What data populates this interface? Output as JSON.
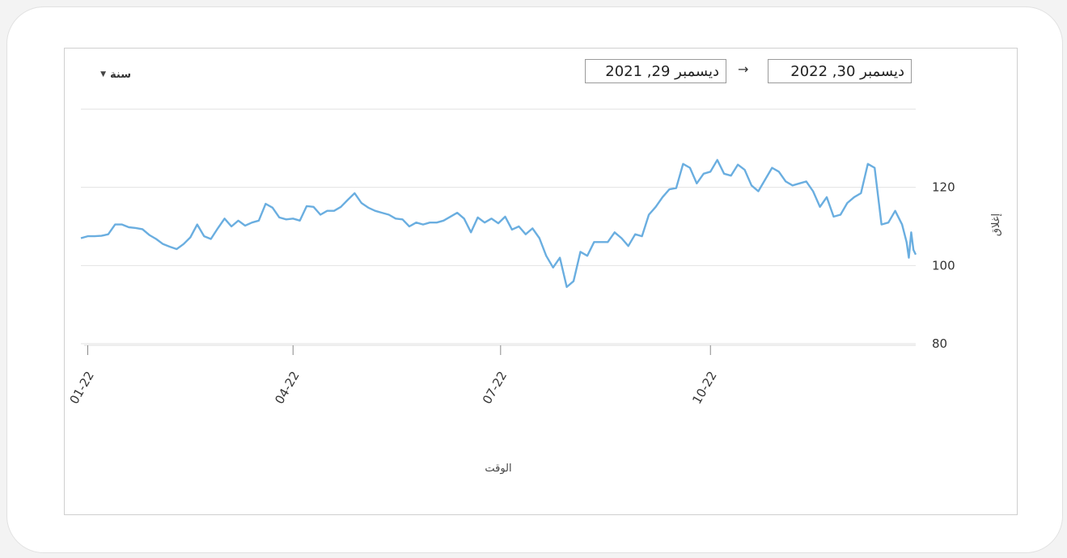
{
  "controls": {
    "range_label": "سنة",
    "date_from": "ديسمبر 29, 2021",
    "date_to": "ديسمبر 30, 2022",
    "arrow": "→"
  },
  "colors": {
    "line": "#6aaee0",
    "grid": "#e2e2e2",
    "panel_border": "#cfcfcf"
  },
  "chart_data": {
    "type": "line",
    "title": "",
    "xlabel": "الوقت",
    "ylabel": "إغلاق",
    "ylim": [
      80,
      140
    ],
    "yticks": [
      80,
      100,
      120
    ],
    "xlim": [
      "2021-12-29",
      "2022-12-30"
    ],
    "xticks": [
      {
        "date": "2022-01-01",
        "label": "01-22"
      },
      {
        "date": "2022-04-01",
        "label": "04-22"
      },
      {
        "date": "2022-07-01",
        "label": "07-22"
      },
      {
        "date": "2022-10-01",
        "label": "10-22"
      }
    ],
    "series": [
      {
        "name": "",
        "points": [
          [
            "2021-12-29",
            107.0
          ],
          [
            "2022-01-01",
            107.5
          ],
          [
            "2022-01-04",
            107.5
          ],
          [
            "2022-01-07",
            107.6
          ],
          [
            "2022-01-10",
            108.0
          ],
          [
            "2022-01-13",
            110.5
          ],
          [
            "2022-01-16",
            110.5
          ],
          [
            "2022-01-19",
            109.8
          ],
          [
            "2022-01-22",
            109.6
          ],
          [
            "2022-01-25",
            109.3
          ],
          [
            "2022-01-28",
            107.8
          ],
          [
            "2022-01-31",
            106.8
          ],
          [
            "2022-02-03",
            105.5
          ],
          [
            "2022-02-06",
            104.8
          ],
          [
            "2022-02-09",
            104.2
          ],
          [
            "2022-02-12",
            105.5
          ],
          [
            "2022-02-15",
            107.2
          ],
          [
            "2022-02-18",
            110.5
          ],
          [
            "2022-02-21",
            107.5
          ],
          [
            "2022-02-24",
            106.8
          ],
          [
            "2022-02-27",
            109.5
          ],
          [
            "2022-03-02",
            112.0
          ],
          [
            "2022-03-05",
            110.0
          ],
          [
            "2022-03-08",
            111.5
          ],
          [
            "2022-03-11",
            110.2
          ],
          [
            "2022-03-14",
            111.0
          ],
          [
            "2022-03-17",
            111.5
          ],
          [
            "2022-03-20",
            115.8
          ],
          [
            "2022-03-23",
            114.8
          ],
          [
            "2022-03-26",
            112.3
          ],
          [
            "2022-03-29",
            111.8
          ],
          [
            "2022-04-01",
            112.0
          ],
          [
            "2022-04-04",
            111.5
          ],
          [
            "2022-04-07",
            115.2
          ],
          [
            "2022-04-10",
            115.0
          ],
          [
            "2022-04-13",
            113.0
          ],
          [
            "2022-04-16",
            114.0
          ],
          [
            "2022-04-19",
            114.0
          ],
          [
            "2022-04-22",
            115.0
          ],
          [
            "2022-04-25",
            116.8
          ],
          [
            "2022-04-28",
            118.5
          ],
          [
            "2022-05-01",
            116.0
          ],
          [
            "2022-05-04",
            114.8
          ],
          [
            "2022-05-07",
            114.0
          ],
          [
            "2022-05-10",
            113.5
          ],
          [
            "2022-05-13",
            113.0
          ],
          [
            "2022-05-16",
            112.0
          ],
          [
            "2022-05-19",
            111.8
          ],
          [
            "2022-05-22",
            110.0
          ],
          [
            "2022-05-25",
            111.0
          ],
          [
            "2022-05-28",
            110.5
          ],
          [
            "2022-05-31",
            111.0
          ],
          [
            "2022-06-03",
            111.0
          ],
          [
            "2022-06-06",
            111.5
          ],
          [
            "2022-06-09",
            112.5
          ],
          [
            "2022-06-12",
            113.5
          ],
          [
            "2022-06-15",
            112.0
          ],
          [
            "2022-06-18",
            108.5
          ],
          [
            "2022-06-21",
            112.3
          ],
          [
            "2022-06-24",
            111.0
          ],
          [
            "2022-06-27",
            112.0
          ],
          [
            "2022-06-30",
            110.8
          ],
          [
            "2022-07-03",
            112.5
          ],
          [
            "2022-07-06",
            109.2
          ],
          [
            "2022-07-09",
            110.0
          ],
          [
            "2022-07-12",
            108.0
          ],
          [
            "2022-07-15",
            109.5
          ],
          [
            "2022-07-18",
            107.0
          ],
          [
            "2022-07-21",
            102.5
          ],
          [
            "2022-07-24",
            99.5
          ],
          [
            "2022-07-27",
            102.0
          ],
          [
            "2022-07-30",
            94.5
          ],
          [
            "2022-08-02",
            96.0
          ],
          [
            "2022-08-05",
            103.5
          ],
          [
            "2022-08-08",
            102.5
          ],
          [
            "2022-08-11",
            106.0
          ],
          [
            "2022-08-14",
            106.0
          ],
          [
            "2022-08-17",
            106.0
          ],
          [
            "2022-08-20",
            108.5
          ],
          [
            "2022-08-23",
            107.0
          ],
          [
            "2022-08-26",
            105.0
          ],
          [
            "2022-08-29",
            108.0
          ],
          [
            "2022-09-01",
            107.5
          ],
          [
            "2022-09-04",
            113.0
          ],
          [
            "2022-09-07",
            115.0
          ],
          [
            "2022-09-10",
            117.5
          ],
          [
            "2022-09-13",
            119.5
          ],
          [
            "2022-09-16",
            119.8
          ],
          [
            "2022-09-19",
            126.0
          ],
          [
            "2022-09-22",
            125.0
          ],
          [
            "2022-09-25",
            121.0
          ],
          [
            "2022-09-28",
            123.5
          ],
          [
            "2022-10-01",
            124.0
          ],
          [
            "2022-10-04",
            127.0
          ],
          [
            "2022-10-07",
            123.5
          ],
          [
            "2022-10-10",
            123.0
          ],
          [
            "2022-10-13",
            125.8
          ],
          [
            "2022-10-16",
            124.5
          ],
          [
            "2022-10-19",
            120.5
          ],
          [
            "2022-10-22",
            119.0
          ],
          [
            "2022-10-25",
            122.0
          ],
          [
            "2022-10-28",
            125.0
          ],
          [
            "2022-10-31",
            124.0
          ],
          [
            "2022-11-03",
            121.5
          ],
          [
            "2022-11-06",
            120.5
          ],
          [
            "2022-11-09",
            121.0
          ],
          [
            "2022-11-12",
            121.5
          ],
          [
            "2022-11-15",
            119.0
          ],
          [
            "2022-11-18",
            115.0
          ],
          [
            "2022-11-21",
            117.5
          ],
          [
            "2022-11-24",
            112.5
          ],
          [
            "2022-11-27",
            113.0
          ],
          [
            "2022-11-30",
            116.0
          ],
          [
            "2022-12-03",
            117.5
          ],
          [
            "2022-12-06",
            118.5
          ],
          [
            "2022-12-09",
            126.0
          ],
          [
            "2022-12-12",
            125.0
          ],
          [
            "2022-12-15",
            110.5
          ],
          [
            "2022-12-18",
            111.0
          ],
          [
            "2022-12-21",
            114.0
          ],
          [
            "2022-12-24",
            110.5
          ],
          [
            "2022-12-26",
            106.0
          ],
          [
            "2022-12-27",
            102.0
          ],
          [
            "2022-12-28",
            108.5
          ],
          [
            "2022-12-29",
            104.0
          ],
          [
            "2022-12-30",
            102.8
          ]
        ]
      }
    ],
    "grid": true,
    "legend": "none"
  }
}
